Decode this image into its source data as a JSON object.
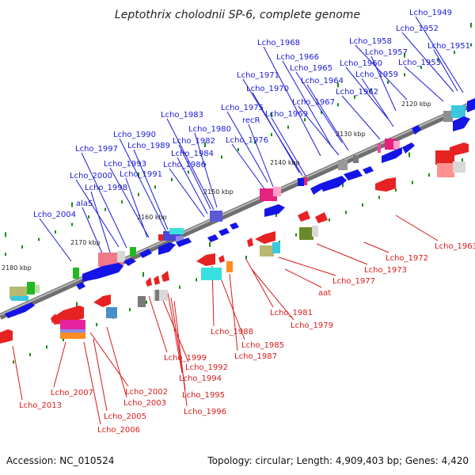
{
  "title": "Leptothrix cholodnii SP-6, complete genome",
  "footer": {
    "accession": "Accession: NC_010524",
    "topology": "Topology: circular; Length: 4,909,403 bp; Genes: 4,420"
  },
  "colors": {
    "top_labels": "#1a1ad8",
    "bottom_labels": "#d81a1a",
    "backbone": "#8a8a8a"
  },
  "kbp_labels": [
    "2120 kbp",
    "2130 kbp",
    "2140 kbp",
    "2150 kbp",
    "2160 kbp",
    "2170 kbp",
    "2180 kbp"
  ],
  "top_labels": [
    {
      "name": "Lcho_1949"
    },
    {
      "name": "Lcho_1952"
    },
    {
      "name": "Lcho_1951"
    },
    {
      "name": "Lcho_1953"
    },
    {
      "name": "Lcho_1958"
    },
    {
      "name": "Lcho_1957"
    },
    {
      "name": "Lcho_1960"
    },
    {
      "name": "Lcho_1959"
    },
    {
      "name": "Lcho_1962"
    },
    {
      "name": "Lcho_1968"
    },
    {
      "name": "Lcho_1966"
    },
    {
      "name": "Lcho_1965"
    },
    {
      "name": "Lcho_1964"
    },
    {
      "name": "Lcho_1967"
    },
    {
      "name": "Lcho_1971"
    },
    {
      "name": "Lcho_1970"
    },
    {
      "name": "Lcho_1969"
    },
    {
      "name": "Lcho_1975"
    },
    {
      "name": "recR"
    },
    {
      "name": "Lcho_1976"
    },
    {
      "name": "Lcho_1983"
    },
    {
      "name": "Lcho_1980"
    },
    {
      "name": "Lcho_1982"
    },
    {
      "name": "Lcho_1984"
    },
    {
      "name": "Lcho_1986"
    },
    {
      "name": "Lcho_1990"
    },
    {
      "name": "Lcho_1989"
    },
    {
      "name": "Lcho_1997"
    },
    {
      "name": "Lcho_1993"
    },
    {
      "name": "Lcho_1991"
    },
    {
      "name": "Lcho_2000"
    },
    {
      "name": "Lcho_1998"
    },
    {
      "name": "alaS"
    },
    {
      "name": "Lcho_2004"
    }
  ],
  "bottom_labels": [
    {
      "name": "Lcho_1963"
    },
    {
      "name": "Lcho_1972"
    },
    {
      "name": "Lcho_1973"
    },
    {
      "name": "Lcho_1977"
    },
    {
      "name": "aat"
    },
    {
      "name": "Lcho_1981"
    },
    {
      "name": "Lcho_1979"
    },
    {
      "name": "Lcho_1988"
    },
    {
      "name": "Lcho_1985"
    },
    {
      "name": "Lcho_1987"
    },
    {
      "name": "Lcho_1999"
    },
    {
      "name": "Lcho_1992"
    },
    {
      "name": "Lcho_1994"
    },
    {
      "name": "Lcho_1995"
    },
    {
      "name": "Lcho_1996"
    },
    {
      "name": "Lcho_2007"
    },
    {
      "name": "Lcho_2002"
    },
    {
      "name": "Lcho_2003"
    },
    {
      "name": "Lcho_2005"
    },
    {
      "name": "Lcho_2006"
    },
    {
      "name": "Lcho_2013"
    }
  ]
}
